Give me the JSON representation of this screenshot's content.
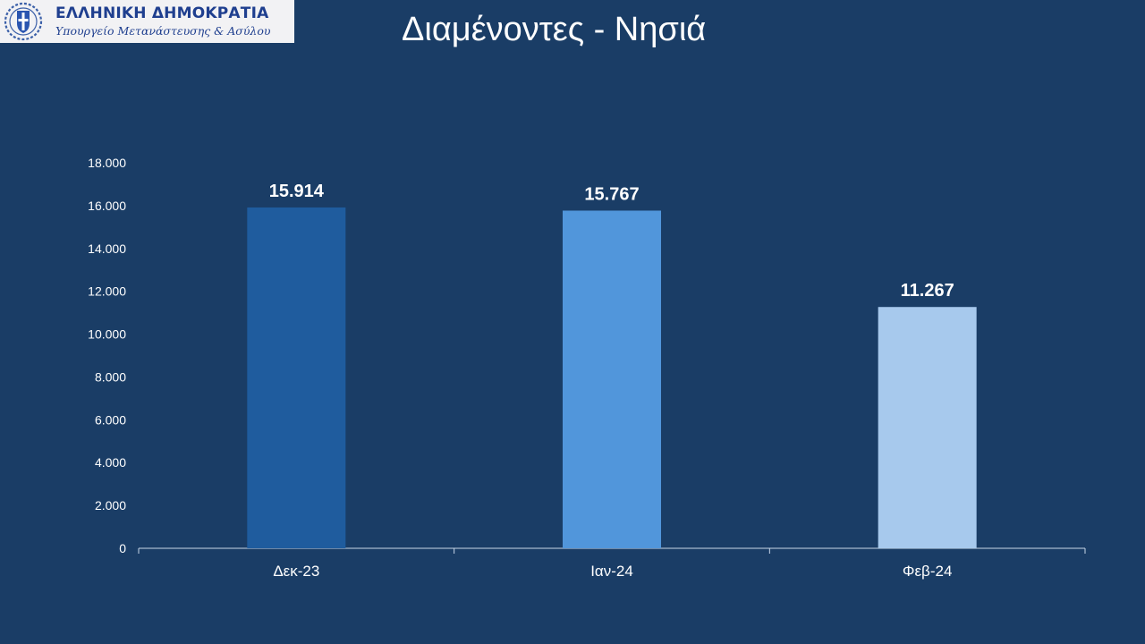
{
  "logo": {
    "title": "ΕΛΛΗΝΙΚΗ ΔΗΜΟΚΡΑΤΙΑ",
    "subtitle": "Υπουργείο Μετανάστευσης & Ασύλου"
  },
  "page": {
    "title": "Διαμένοντες - Νησιά"
  },
  "chart_data": {
    "type": "bar",
    "title": "",
    "xlabel": "",
    "ylabel": "",
    "categories": [
      "Δεκ-23",
      "Ιαν-24",
      "Φεβ-24"
    ],
    "values": [
      15914,
      15767,
      11267
    ],
    "data_labels": [
      "15.914",
      "15.767",
      "11.267"
    ],
    "bar_colors": [
      "#1f5c9e",
      "#5196db",
      "#a7c9ed"
    ],
    "ylim": [
      0,
      18000
    ],
    "yticks": [
      0,
      2000,
      4000,
      6000,
      8000,
      10000,
      12000,
      14000,
      16000,
      18000
    ],
    "ytick_labels": [
      "0",
      "2.000",
      "4.000",
      "6.000",
      "8.000",
      "10.000",
      "12.000",
      "14.000",
      "16.000",
      "18.000"
    ],
    "grid": false,
    "legend": "none"
  },
  "colors": {
    "background": "#1a3d66",
    "text": "#ffffff",
    "axis": "#c8d6e8",
    "logo_text": "#1f3f8f"
  }
}
